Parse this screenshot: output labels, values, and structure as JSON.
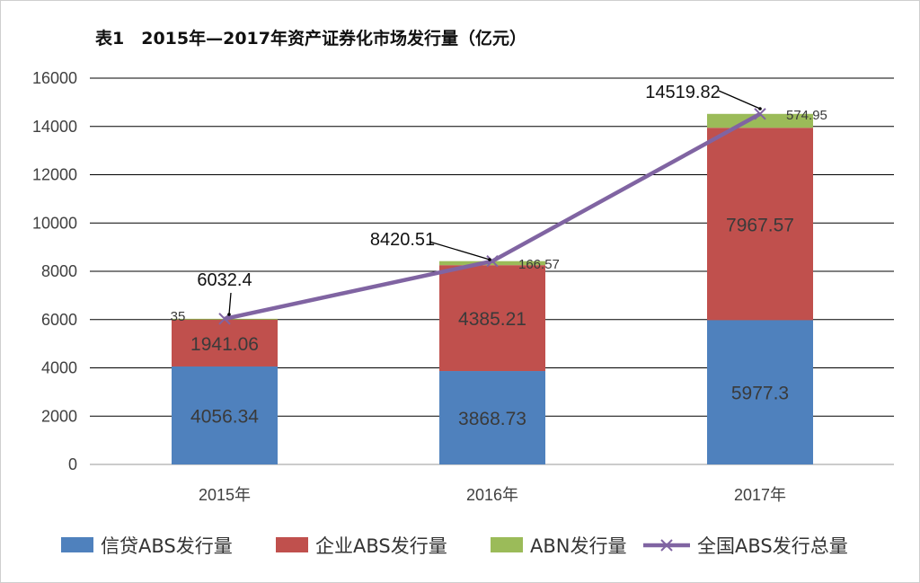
{
  "chart_data": {
    "type": "bar",
    "stacked": true,
    "title": "表1　2015年—2017年资产证券化市场发行量（亿元）",
    "categories": [
      "2015年",
      "2016年",
      "2017年"
    ],
    "ylim": [
      0,
      16000
    ],
    "yticks": [
      0,
      2000,
      4000,
      6000,
      8000,
      10000,
      12000,
      14000,
      16000
    ],
    "grid": true,
    "legend_position": "bottom",
    "series": [
      {
        "name": "信贷ABS发行量",
        "kind": "bar",
        "color": "#4f81bd",
        "values": [
          4056.34,
          3868.73,
          5977.3
        ],
        "labels": [
          "4056.34",
          "3868.73",
          "5977.3"
        ]
      },
      {
        "name": "企业ABS发行量",
        "kind": "bar",
        "color": "#c0504d",
        "values": [
          1941.06,
          4385.21,
          7967.57
        ],
        "labels": [
          "1941.06",
          "4385.21",
          "7967.57"
        ]
      },
      {
        "name": "ABN发行量",
        "kind": "bar",
        "color": "#9bbb59",
        "values": [
          35,
          166.57,
          574.95
        ],
        "labels": [
          "35",
          "166.57",
          "574.95"
        ]
      },
      {
        "name": "全国ABS发行总量",
        "kind": "line",
        "color": "#8064a2",
        "marker": "x",
        "values": [
          6032.4,
          8420.51,
          14519.82
        ],
        "labels": [
          "6032.4",
          "8420.51",
          "14519.82"
        ]
      }
    ]
  }
}
